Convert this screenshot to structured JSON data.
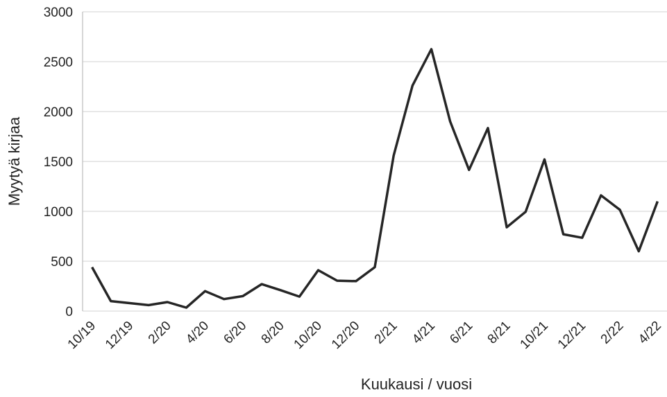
{
  "chart_data": {
    "type": "line",
    "x_label": "Kuukausi / vuosi",
    "y_label": "Myytyä kirjaa",
    "categories": [
      "10/19",
      null,
      "12/19",
      null,
      "2/20",
      null,
      "4/20",
      null,
      "6/20",
      null,
      "8/20",
      null,
      "10/20",
      null,
      "12/20",
      null,
      "2/21",
      null,
      "4/21",
      null,
      "6/21",
      null,
      "8/21",
      null,
      "10/21",
      null,
      "12/21",
      null,
      "2/22",
      null,
      "4/22"
    ],
    "series": [
      {
        "name": "Myytyä kirjaa",
        "color": "#262626",
        "values": [
          440,
          100,
          80,
          60,
          90,
          35,
          200,
          120,
          150,
          270,
          210,
          145,
          410,
          305,
          300,
          440,
          1560,
          2260,
          2625,
          1900,
          1415,
          1835,
          840,
          995,
          1520,
          770,
          735,
          1160,
          1015,
          600,
          1100
        ]
      }
    ],
    "ylim": [
      0,
      3000
    ],
    "yticks": [
      0,
      500,
      1000,
      1500,
      2000,
      2500,
      3000
    ],
    "grid": true
  }
}
